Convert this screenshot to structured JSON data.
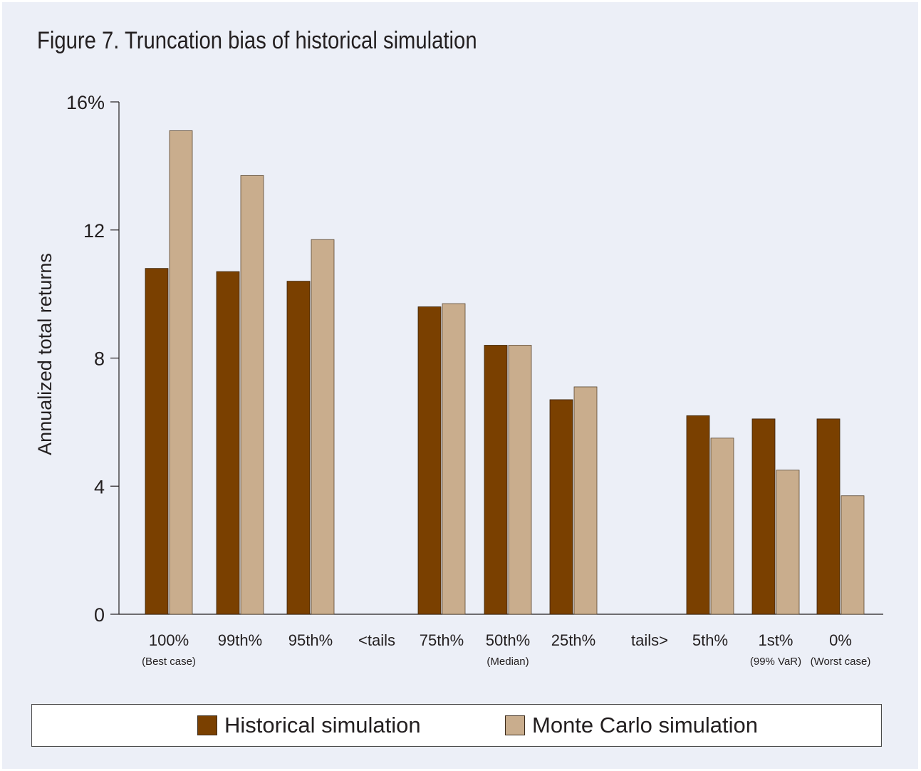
{
  "title": "Figure 7. Truncation bias of historical simulation",
  "colors": {
    "historical": "#7a4000",
    "montecarlo": "#c9ad8d",
    "axis": "#231f20"
  },
  "legend": {
    "historical": "Historical simulation",
    "montecarlo": "Monte Carlo simulation"
  },
  "chart_data": {
    "type": "bar",
    "title": "Figure 7. Truncation bias of historical simulation",
    "ylabel": "Annualized total returns",
    "xlabel": "",
    "ylim": [
      0,
      16
    ],
    "yticks": [
      "0",
      "4",
      "8",
      "12",
      "16%"
    ],
    "grid": false,
    "legend_position": "bottom",
    "categories": [
      {
        "label": "100%",
        "sub": "(Best case)"
      },
      {
        "label": "99th%",
        "sub": ""
      },
      {
        "label": "95th%",
        "sub": ""
      },
      {
        "label": "<tails",
        "sub": ""
      },
      {
        "label": "75th%",
        "sub": ""
      },
      {
        "label": "50th%",
        "sub": "(Median)"
      },
      {
        "label": "25th%",
        "sub": ""
      },
      {
        "label": "tails>",
        "sub": ""
      },
      {
        "label": "5th%",
        "sub": ""
      },
      {
        "label": "1st%",
        "sub": "(99% VaR)"
      },
      {
        "label": "0%",
        "sub": "(Worst case)"
      }
    ],
    "series": [
      {
        "name": "Historical simulation",
        "values": [
          10.8,
          10.7,
          10.4,
          null,
          9.6,
          8.4,
          6.7,
          null,
          6.2,
          6.1,
          6.1
        ]
      },
      {
        "name": "Monte Carlo simulation",
        "values": [
          15.1,
          13.7,
          11.7,
          null,
          9.7,
          8.4,
          7.1,
          null,
          5.5,
          4.5,
          3.7
        ]
      }
    ]
  }
}
